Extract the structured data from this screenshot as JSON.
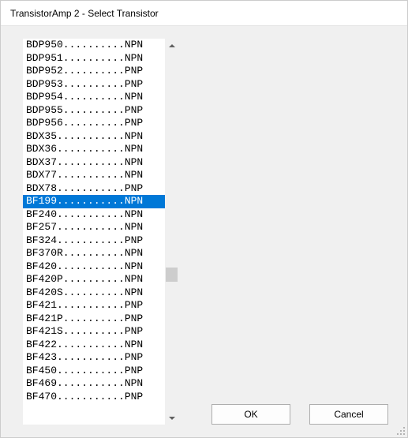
{
  "window": {
    "title": "TransistorAmp 2 - Select Transistor"
  },
  "list": {
    "selected_index": 12,
    "items": [
      {
        "label": "BDP950..........NPN"
      },
      {
        "label": "BDP951..........NPN"
      },
      {
        "label": "BDP952..........PNP"
      },
      {
        "label": "BDP953..........PNP"
      },
      {
        "label": "BDP954..........NPN"
      },
      {
        "label": "BDP955..........PNP"
      },
      {
        "label": "BDP956..........PNP"
      },
      {
        "label": "BDX35...........NPN"
      },
      {
        "label": "BDX36...........NPN"
      },
      {
        "label": "BDX37...........NPN"
      },
      {
        "label": "BDX77...........NPN"
      },
      {
        "label": "BDX78...........PNP"
      },
      {
        "label": "BF199...........NPN"
      },
      {
        "label": "BF240...........NPN"
      },
      {
        "label": "BF257...........NPN"
      },
      {
        "label": "BF324...........PNP"
      },
      {
        "label": "BF370R..........NPN"
      },
      {
        "label": "BF420...........NPN"
      },
      {
        "label": "BF420P..........NPN"
      },
      {
        "label": "BF420S..........NPN"
      },
      {
        "label": "BF421...........PNP"
      },
      {
        "label": "BF421P..........PNP"
      },
      {
        "label": "BF421S..........PNP"
      },
      {
        "label": "BF422...........NPN"
      },
      {
        "label": "BF423...........PNP"
      },
      {
        "label": "BF450...........PNP"
      },
      {
        "label": "BF469...........NPN"
      },
      {
        "label": "BF470...........PNP"
      }
    ]
  },
  "buttons": {
    "ok": "OK",
    "cancel": "Cancel"
  },
  "colors": {
    "selection_bg": "#0078d7",
    "selection_fg": "#ffffff",
    "window_bg": "#f0f0f0",
    "list_bg": "#ffffff"
  }
}
